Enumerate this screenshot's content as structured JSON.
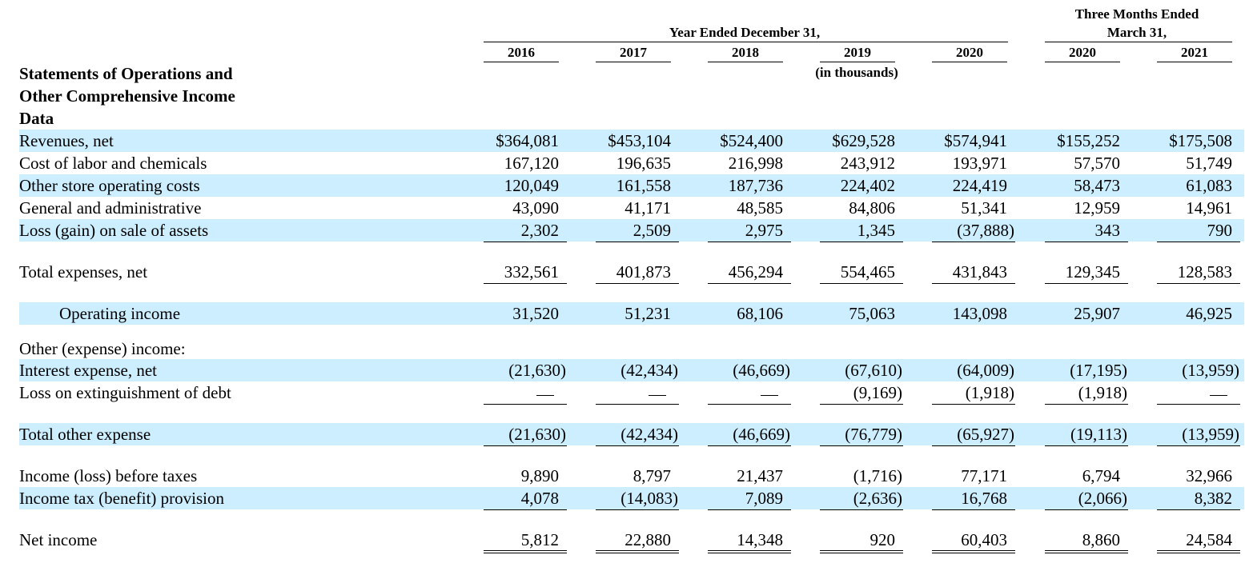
{
  "header": {
    "group_year": "Year Ended December 31,",
    "group_q_line1": "Three Months Ended",
    "group_q_line2": "March 31,",
    "columns": [
      "2016",
      "2017",
      "2018",
      "2019",
      "2020",
      "2020",
      "2021"
    ],
    "units": "(in thousands)"
  },
  "section_title": {
    "line1": "Statements of Operations and",
    "line2": "Other Comprehensive Income",
    "line3": "Data"
  },
  "rows": [
    {
      "label": "Revenues, net",
      "values": [
        "$364,081",
        "$453,104",
        "$524,400",
        "$629,528",
        "$574,941",
        "$155,252",
        "$175,508"
      ]
    },
    {
      "label": "Cost of labor and chemicals",
      "values": [
        "167,120",
        "196,635",
        "216,998",
        "243,912",
        "193,971",
        "57,570",
        "51,749"
      ]
    },
    {
      "label": "Other store operating costs",
      "values": [
        "120,049",
        "161,558",
        "187,736",
        "224,402",
        "224,419",
        "58,473",
        "61,083"
      ]
    },
    {
      "label": "General and administrative",
      "values": [
        "43,090",
        "41,171",
        "48,585",
        "84,806",
        "51,341",
        "12,959",
        "14,961"
      ]
    },
    {
      "label": "Loss (gain) on sale of assets",
      "values": [
        "2,302",
        "2,509",
        "2,975",
        "1,345",
        "(37,888)",
        "343",
        "790"
      ]
    },
    {
      "label": "Total expenses, net",
      "values": [
        "332,561",
        "401,873",
        "456,294",
        "554,465",
        "431,843",
        "129,345",
        "128,583"
      ]
    },
    {
      "label": "Operating income",
      "values": [
        "31,520",
        "51,231",
        "68,106",
        "75,063",
        "143,098",
        "25,907",
        "46,925"
      ]
    },
    {
      "label": "Other (expense) income:",
      "values": []
    },
    {
      "label": "Interest expense, net",
      "values": [
        "(21,630)",
        "(42,434)",
        "(46,669)",
        "(67,610)",
        "(64,009)",
        "(17,195)",
        "(13,959)"
      ]
    },
    {
      "label": "Loss on extinguishment of debt",
      "values": [
        "—",
        "—",
        "—",
        "(9,169)",
        "(1,918)",
        "(1,918)",
        "—"
      ]
    },
    {
      "label": "Total other expense",
      "values": [
        "(21,630)",
        "(42,434)",
        "(46,669)",
        "(76,779)",
        "(65,927)",
        "(19,113)",
        "(13,959)"
      ]
    },
    {
      "label": "Income (loss) before taxes",
      "values": [
        "9,890",
        "8,797",
        "21,437",
        "(1,716)",
        "77,171",
        "6,794",
        "32,966"
      ]
    },
    {
      "label": "Income tax (benefit) provision",
      "values": [
        "4,078",
        "(14,083)",
        "7,089",
        "(2,636)",
        "16,768",
        "(2,066)",
        "8,382"
      ]
    },
    {
      "label": "Net income",
      "values": [
        "5,812",
        "22,880",
        "14,348",
        "920",
        "60,403",
        "8,860",
        "24,584"
      ]
    }
  ],
  "colors": {
    "band": "#cceeff",
    "text": "#000000"
  }
}
